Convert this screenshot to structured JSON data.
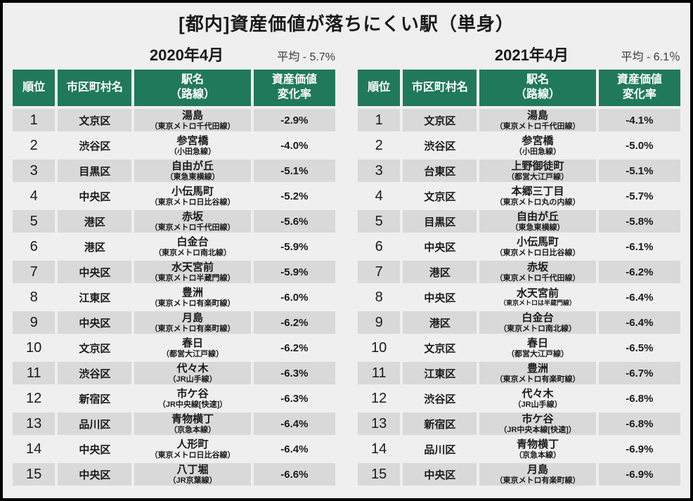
{
  "title": "[都内]資産価値が落ちにくい駅（単身）",
  "colors": {
    "header_green": "#21795B",
    "row_alt_gray": "#D9D9D9",
    "background": "#EFEFEF",
    "border": "#000000"
  },
  "chart_data": [
    {
      "type": "table",
      "period": "2020年4月",
      "average": "平均 - 5.7%",
      "columns": [
        "順位",
        "市区町村名",
        "駅名\n（路線）",
        "資産価値\n変化率"
      ],
      "rows": [
        {
          "rank": "1",
          "city": "文京区",
          "station": "湯島",
          "line": "（東京メトロ千代田線）",
          "change": "-2.9%"
        },
        {
          "rank": "2",
          "city": "渋谷区",
          "station": "参宮橋",
          "line": "（小田急線）",
          "change": "-4.0%"
        },
        {
          "rank": "3",
          "city": "目黒区",
          "station": "自由が丘",
          "line": "（東急東横線）",
          "change": "-5.1%"
        },
        {
          "rank": "4",
          "city": "中央区",
          "station": "小伝馬町",
          "line": "（東京メトロ日比谷線）",
          "change": "-5.2%"
        },
        {
          "rank": "5",
          "city": "港区",
          "station": "赤坂",
          "line": "（東京メトロ千代田線）",
          "change": "-5.6%"
        },
        {
          "rank": "6",
          "city": "港区",
          "station": "白金台",
          "line": "（東京メトロ南北線）",
          "change": "-5.9%"
        },
        {
          "rank": "7",
          "city": "中央区",
          "station": "水天宮前",
          "line": "（東京メトロ半蔵門線）",
          "change": "-5.9%"
        },
        {
          "rank": "8",
          "city": "江東区",
          "station": "豊洲",
          "line": "（東京メトロ有楽町線）",
          "change": "-6.0%"
        },
        {
          "rank": "9",
          "city": "中央区",
          "station": "月島",
          "line": "（東京メトロ有楽町線）",
          "change": "-6.2%"
        },
        {
          "rank": "10",
          "city": "文京区",
          "station": "春日",
          "line": "（都営大江戸線）",
          "change": "-6.2%"
        },
        {
          "rank": "11",
          "city": "渋谷区",
          "station": "代々木",
          "line": "（JR山手線）",
          "change": "-6.3%"
        },
        {
          "rank": "12",
          "city": "新宿区",
          "station": "市ケ谷",
          "line": "（JR中央線[快速]）",
          "change": "-6.3%"
        },
        {
          "rank": "13",
          "city": "品川区",
          "station": "青物横丁",
          "line": "（京急本線）",
          "change": "-6.4%"
        },
        {
          "rank": "14",
          "city": "中央区",
          "station": "人形町",
          "line": "（東京メトロ日比谷線）",
          "change": "-6.4%"
        },
        {
          "rank": "15",
          "city": "中央区",
          "station": "八丁堀",
          "line": "（JR京葉線）",
          "change": "-6.6%"
        }
      ]
    },
    {
      "type": "table",
      "period": "2021年4月",
      "average": "平均 - 6.1％",
      "columns": [
        "順位",
        "市区町村名",
        "駅名\n（路線）",
        "資産価値\n変化率"
      ],
      "rows": [
        {
          "rank": "1",
          "city": "文京区",
          "station": "湯島",
          "line": "（東京メトロ千代田線）",
          "change": "-4.1%"
        },
        {
          "rank": "2",
          "city": "渋谷区",
          "station": "参宮橋",
          "line": "（小田急線）",
          "change": "-5.0%"
        },
        {
          "rank": "3",
          "city": "台東区",
          "station": "上野御徒町",
          "line": "（都営大江戸線）",
          "change": "-5.1%"
        },
        {
          "rank": "4",
          "city": "文京区",
          "station": "本郷三丁目",
          "line": "（東京メトロ丸の内線）",
          "change": "-5.7%"
        },
        {
          "rank": "5",
          "city": "目黒区",
          "station": "自由が丘",
          "line": "（東急東横線）",
          "change": "-5.8%"
        },
        {
          "rank": "6",
          "city": "中央区",
          "station": "小伝馬町",
          "line": "（東京メトロ日比谷線）",
          "change": "-6.1%"
        },
        {
          "rank": "7",
          "city": "港区",
          "station": "赤坂",
          "line": "（東京メトロ千代田線）",
          "change": "-6.2%"
        },
        {
          "rank": "8",
          "city": "中央区",
          "station": "水天宮前",
          "line": "（東京メトロは半蔵門線）",
          "change": "-6.4%",
          "line_small": true
        },
        {
          "rank": "9",
          "city": "港区",
          "station": "白金台",
          "line": "（東京メトロ南北線）",
          "change": "-6.4%"
        },
        {
          "rank": "10",
          "city": "文京区",
          "station": "春日",
          "line": "（都営大江戸線）",
          "change": "-6.5%"
        },
        {
          "rank": "11",
          "city": "江東区",
          "station": "豊洲",
          "line": "（東京メトロ有楽町線）",
          "change": "-6.7%"
        },
        {
          "rank": "12",
          "city": "渋谷区",
          "station": "代々木",
          "line": "（JR山手線）",
          "change": "-6.8%"
        },
        {
          "rank": "13",
          "city": "新宿区",
          "station": "市ケ谷",
          "line": "（JR中央本線[快速]）",
          "change": "-6.8%"
        },
        {
          "rank": "14",
          "city": "品川区",
          "station": "青物横丁",
          "line": "（京急本線）",
          "change": "-6.9%"
        },
        {
          "rank": "15",
          "city": "中央区",
          "station": "月島",
          "line": "（東京メトロ有楽町線）",
          "change": "-6.9%"
        }
      ]
    }
  ]
}
